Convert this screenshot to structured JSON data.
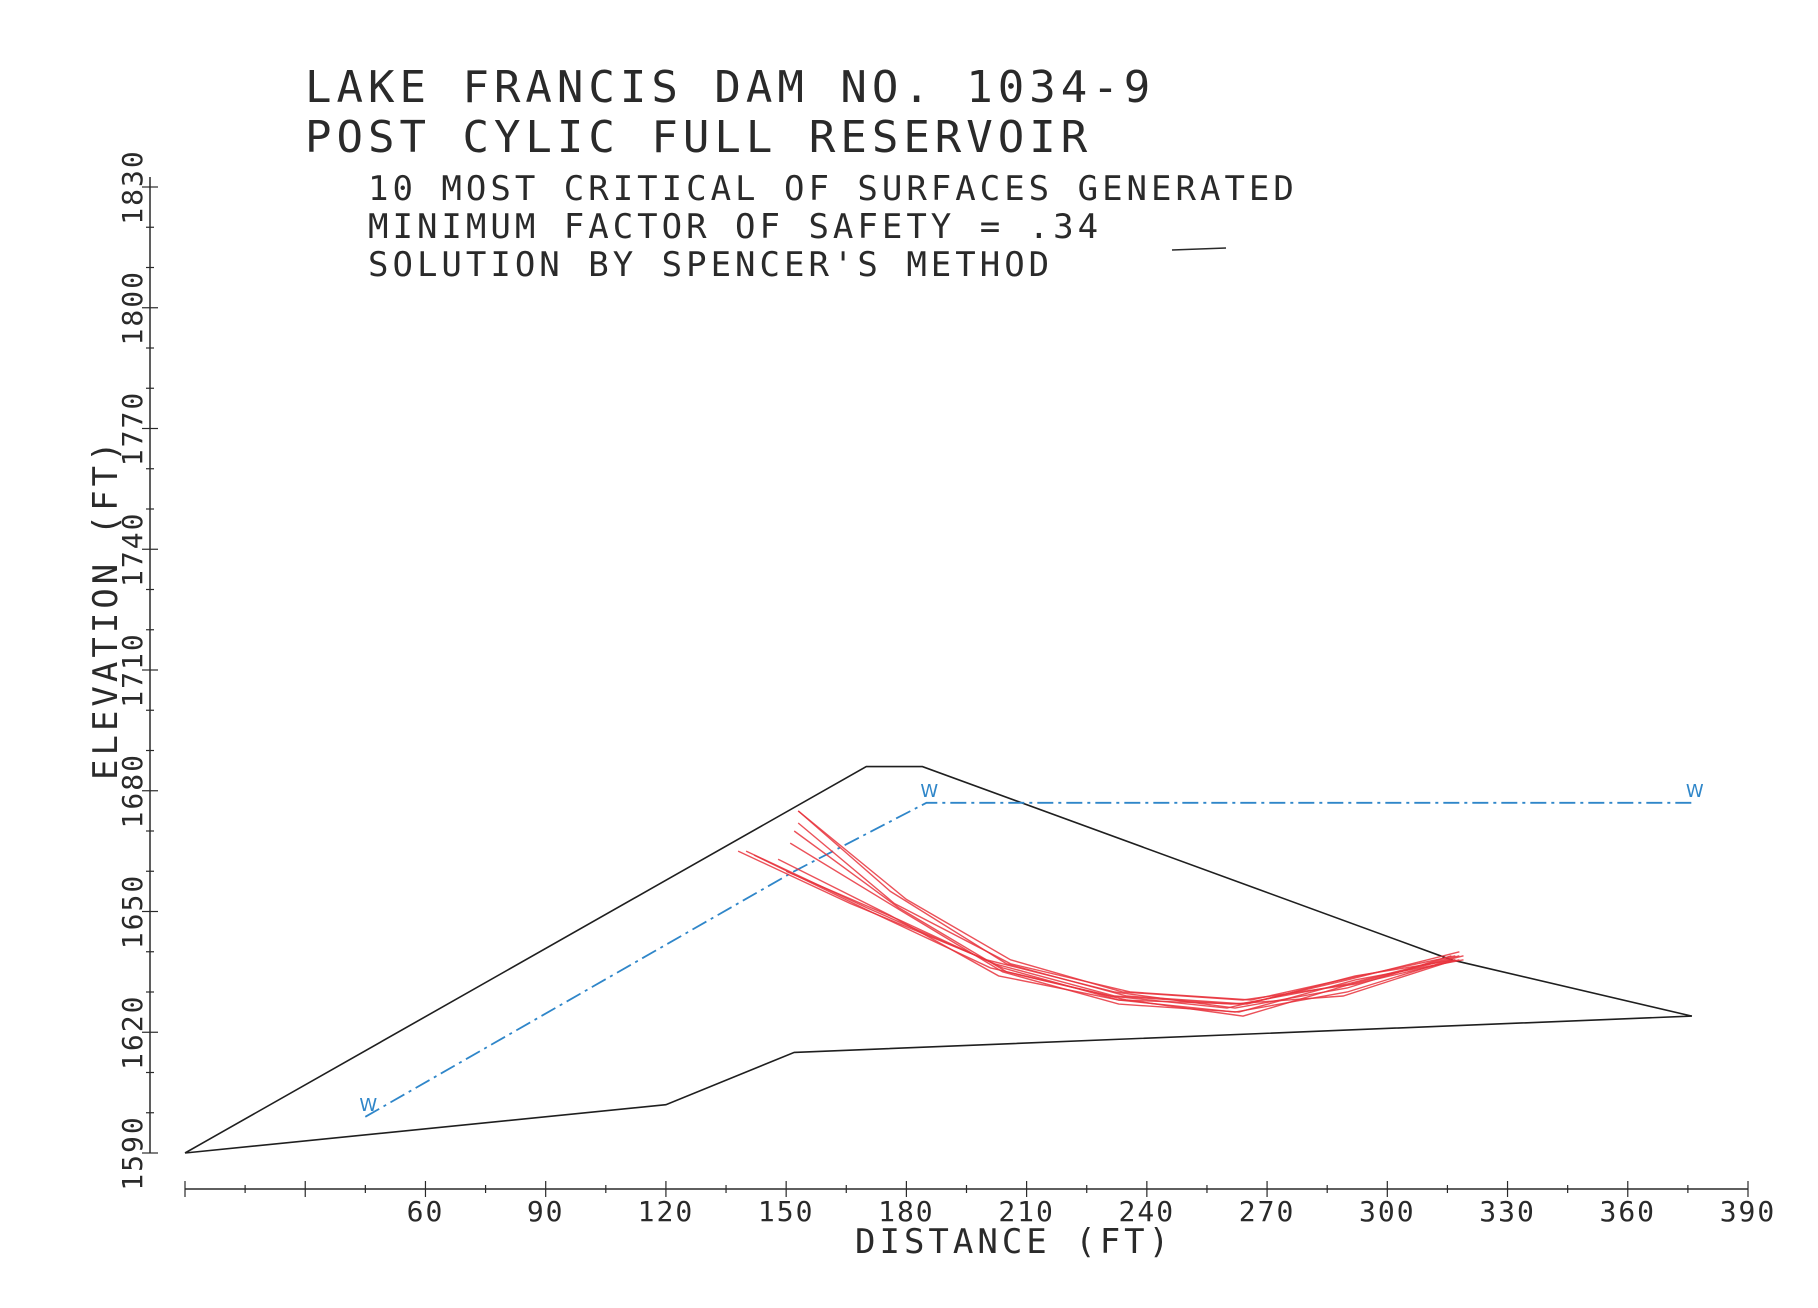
{
  "title_lines": [
    "LAKE FRANCIS DAM NO. 1034-9",
    "POST CYLIC FULL RESERVOIR"
  ],
  "subtitle_lines": [
    "10 MOST CRITICAL OF SURFACES GENERATED",
    "MINIMUM FACTOR OF SAFETY = .34",
    "SOLUTION BY SPENCER'S METHOD"
  ],
  "x_axis": {
    "label": "DISTANCE (FT)",
    "ticks": [
      "60",
      "90",
      "120",
      "150",
      "180",
      "210",
      "240",
      "270",
      "300",
      "330",
      "360",
      "390"
    ]
  },
  "y_axis": {
    "label": "ELEVATION (FT)",
    "ticks": [
      "1590",
      "1620",
      "1650",
      "1680",
      "1710",
      "1740",
      "1770",
      "1800",
      "1830"
    ]
  },
  "water_marker": "W",
  "colors": {
    "outline": "#1f1f1f",
    "phreatic": "#2f86c9",
    "critical_surfaces": "#e8323c"
  },
  "chart_data": {
    "type": "diagram",
    "x_range": [
      0,
      390
    ],
    "y_range": [
      1590,
      1830
    ],
    "embankment_profile": [
      [
        0,
        1590
      ],
      [
        120,
        1602
      ],
      [
        152,
        1615
      ],
      [
        376,
        1624
      ],
      [
        316,
        1638
      ],
      [
        184,
        1686
      ],
      [
        170,
        1686
      ],
      [
        0,
        1590
      ]
    ],
    "phreatic_line": [
      [
        45,
        1599
      ],
      [
        152,
        1660
      ],
      [
        185,
        1677
      ],
      [
        376,
        1677
      ]
    ],
    "critical_surfaces": [
      [
        [
          153,
          1675
        ],
        [
          176,
          1655
        ],
        [
          205,
          1637
        ],
        [
          235,
          1629
        ],
        [
          265,
          1627
        ],
        [
          292,
          1634
        ],
        [
          317,
          1638
        ]
      ],
      [
        [
          138,
          1665
        ],
        [
          166,
          1652
        ],
        [
          200,
          1638
        ],
        [
          232,
          1630
        ],
        [
          262,
          1626
        ],
        [
          290,
          1631
        ],
        [
          316,
          1639
        ]
      ],
      [
        [
          150,
          1660
        ],
        [
          178,
          1648
        ],
        [
          204,
          1636
        ],
        [
          233,
          1628
        ],
        [
          263,
          1627
        ],
        [
          290,
          1632
        ],
        [
          318,
          1639
        ]
      ],
      [
        [
          153,
          1675
        ],
        [
          180,
          1653
        ],
        [
          206,
          1638
        ],
        [
          234,
          1630
        ],
        [
          264,
          1628
        ],
        [
          292,
          1632
        ],
        [
          318,
          1638
        ]
      ],
      [
        [
          140,
          1665
        ],
        [
          170,
          1651
        ],
        [
          202,
          1637
        ],
        [
          232,
          1629
        ],
        [
          261,
          1627
        ],
        [
          289,
          1629
        ],
        [
          317,
          1638
        ]
      ],
      [
        [
          152,
          1670
        ],
        [
          178,
          1651
        ],
        [
          205,
          1635
        ],
        [
          235,
          1628
        ],
        [
          264,
          1624
        ],
        [
          291,
          1632
        ],
        [
          319,
          1639
        ]
      ],
      [
        [
          148,
          1663
        ],
        [
          176,
          1649
        ],
        [
          203,
          1634
        ],
        [
          233,
          1628
        ],
        [
          262,
          1625
        ],
        [
          290,
          1630
        ],
        [
          316,
          1638
        ]
      ],
      [
        [
          153,
          1672
        ],
        [
          177,
          1652
        ],
        [
          206,
          1637
        ],
        [
          236,
          1630
        ],
        [
          266,
          1628
        ],
        [
          293,
          1634
        ],
        [
          317,
          1639
        ]
      ],
      [
        [
          142,
          1664
        ],
        [
          171,
          1650
        ],
        [
          201,
          1636
        ],
        [
          231,
          1629
        ],
        [
          260,
          1626
        ],
        [
          290,
          1633
        ],
        [
          318,
          1640
        ]
      ],
      [
        [
          151,
          1667
        ],
        [
          179,
          1650
        ],
        [
          204,
          1635
        ],
        [
          233,
          1627
        ],
        [
          263,
          1625
        ],
        [
          292,
          1633
        ],
        [
          319,
          1638
        ]
      ]
    ]
  }
}
